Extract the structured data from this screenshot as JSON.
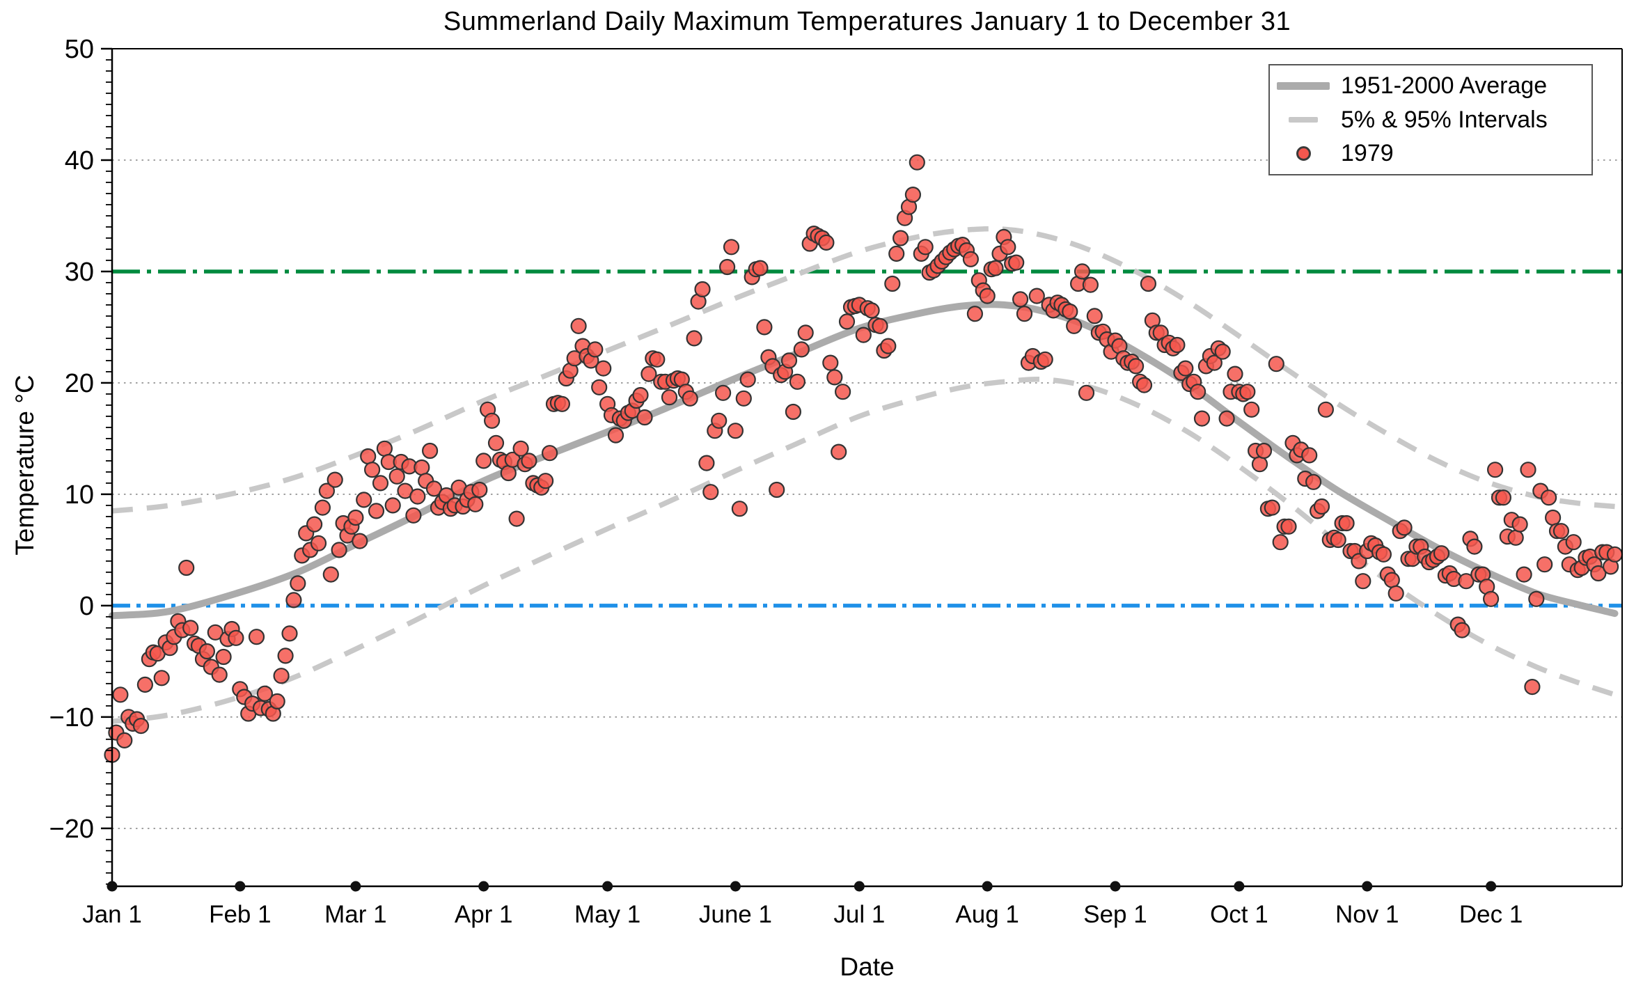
{
  "chart_data": {
    "type": "scatter",
    "title": "Summerland Daily Maximum Temperatures January 1 to December 31",
    "xlabel": "Date",
    "ylabel": "Temperature °C",
    "ylim": [
      -25.2,
      50
    ],
    "xlim_days": [
      1,
      366
    ],
    "grid": "horizontal dotted lines at -20, -10, 10, 20, 40",
    "grid_values": [
      40,
      20,
      10,
      -10,
      -20
    ],
    "legend_position": "top-right",
    "y_ticks": [
      {
        "value": 50,
        "label": "50"
      },
      {
        "value": 40,
        "label": "40"
      },
      {
        "value": 30,
        "label": "30"
      },
      {
        "value": 20,
        "label": "20"
      },
      {
        "value": 10,
        "label": "10"
      },
      {
        "value": 0,
        "label": "0"
      },
      {
        "value": -10,
        "label": "−10"
      },
      {
        "value": -20,
        "label": "−20"
      }
    ],
    "y_minor_tick_step": 1,
    "x_ticks": [
      {
        "day": 1,
        "label": "Jan 1"
      },
      {
        "day": 32,
        "label": "Feb 1"
      },
      {
        "day": 60,
        "label": "Mar 1"
      },
      {
        "day": 91,
        "label": "Apr 1"
      },
      {
        "day": 121,
        "label": "May 1"
      },
      {
        "day": 152,
        "label": "June 1"
      },
      {
        "day": 182,
        "label": "Jul 1"
      },
      {
        "day": 213,
        "label": "Aug 1"
      },
      {
        "day": 244,
        "label": "Sep 1"
      },
      {
        "day": 274,
        "label": "Oct 1"
      },
      {
        "day": 305,
        "label": "Nov 1"
      },
      {
        "day": 335,
        "label": "Dec 1"
      }
    ],
    "reference_lines": [
      {
        "name": "30C-threshold",
        "value": 30,
        "color": "#008a3e",
        "style": "dash-dot-long"
      },
      {
        "name": "0C-freezing",
        "value": 0,
        "color": "#1e90e8",
        "style": "dash-dot"
      }
    ],
    "legend": {
      "items": [
        {
          "label": "1951-2000 Average",
          "swatch": "thick-gray-line"
        },
        {
          "label": "5% & 95% Intervals",
          "swatch": "dashed-gray-line"
        },
        {
          "label": "1979",
          "swatch": "red-dot"
        }
      ]
    },
    "curves": {
      "sample_days": [
        1,
        15,
        32,
        46,
        60,
        74,
        91,
        105,
        121,
        135,
        152,
        166,
        182,
        196,
        207,
        217,
        227,
        238,
        250,
        262,
        274,
        286,
        298,
        310,
        322,
        334,
        346,
        356,
        365
      ],
      "average_1951_2000": [
        -0.9,
        -0.5,
        1.2,
        3.0,
        5.5,
        8.0,
        11.2,
        13.3,
        15.6,
        17.7,
        20.4,
        22.5,
        24.9,
        26.2,
        26.9,
        27.0,
        26.4,
        25.0,
        22.6,
        19.8,
        16.5,
        13.3,
        10.3,
        7.7,
        5.2,
        3.0,
        1.1,
        0.1,
        -0.7
      ],
      "interval_95pct": [
        8.5,
        9.0,
        10.2,
        11.6,
        13.5,
        15.6,
        18.4,
        20.5,
        22.9,
        25.0,
        27.6,
        29.6,
        31.8,
        33.1,
        33.7,
        33.8,
        33.2,
        31.9,
        29.8,
        27.2,
        24.2,
        21.1,
        18.1,
        15.4,
        13.0,
        11.1,
        9.8,
        9.2,
        8.9
      ],
      "interval_5pct": [
        -10.4,
        -9.8,
        -8.2,
        -6.3,
        -3.9,
        -1.4,
        1.8,
        4.2,
        6.9,
        9.2,
        12.1,
        14.4,
        17.0,
        18.6,
        19.6,
        20.1,
        20.3,
        19.6,
        17.9,
        15.5,
        12.5,
        9.2,
        5.6,
        2.2,
        -0.8,
        -3.4,
        -5.5,
        -6.9,
        -8.0
      ]
    },
    "scatter_1979": {
      "month_order": [
        "Jan",
        "Feb",
        "Mar",
        "Apr",
        "May",
        "Jun",
        "Jul",
        "Aug",
        "Sep",
        "Oct",
        "Nov",
        "Dec"
      ],
      "monthly_temps_c": {
        "Jan": [
          -13.4,
          -11.4,
          -8.0,
          -12.1,
          -10.0,
          -10.6,
          -10.2,
          -10.8,
          -7.1,
          -4.8,
          -4.2,
          -4.3,
          -6.5,
          -3.3,
          -3.8,
          -2.8,
          -1.4,
          -2.2,
          3.4,
          -2.0,
          -3.4,
          -3.6,
          -4.8,
          -4.1,
          -5.5,
          -2.4,
          -6.2,
          -4.6,
          -3.0,
          -2.1,
          -2.9
        ],
        "Feb": [
          -7.5,
          -8.2,
          -9.7,
          -8.8,
          -2.8,
          -9.2,
          -7.9,
          -9.3,
          -9.7,
          -8.6,
          -6.3,
          -4.5,
          -2.5,
          0.5,
          2.0,
          4.5,
          6.5,
          5.0,
          7.3,
          5.6,
          8.8,
          10.3,
          2.8,
          11.3,
          5.0,
          7.4,
          6.3,
          7.1
        ],
        "Mar": [
          7.9,
          5.8,
          9.5,
          13.4,
          12.2,
          8.5,
          11.0,
          14.1,
          12.9,
          9.0,
          11.6,
          12.9,
          10.3,
          12.5,
          8.1,
          9.8,
          12.4,
          11.2,
          13.9,
          10.5,
          8.8,
          9.3,
          9.9,
          8.7,
          9.0,
          10.6,
          8.9,
          9.5,
          10.2,
          9.1,
          10.4
        ],
        "Apr": [
          13.0,
          17.6,
          16.6,
          14.6,
          13.1,
          12.9,
          11.9,
          13.1,
          7.8,
          14.1,
          12.7,
          13.0,
          11.0,
          10.8,
          10.6,
          11.2,
          13.7,
          18.1,
          18.2,
          18.1,
          20.4,
          21.1,
          22.2,
          25.1,
          23.3,
          22.4,
          22.0,
          23.0,
          19.6,
          21.3
        ],
        "May": [
          18.1,
          17.1,
          15.3,
          16.8,
          16.6,
          17.3,
          17.5,
          18.4,
          18.9,
          16.9,
          20.8,
          22.2,
          22.1,
          20.1,
          20.1,
          18.7,
          20.2,
          20.4,
          20.3,
          19.2,
          18.6,
          24.0,
          27.3,
          28.4,
          12.8,
          10.2,
          15.7,
          16.6,
          19.1,
          30.4,
          32.2
        ],
        "Jun": [
          15.7,
          8.7,
          18.6,
          20.3,
          29.5,
          30.2,
          30.3,
          25.0,
          22.3,
          21.5,
          10.4,
          20.7,
          21.0,
          22.0,
          17.4,
          20.1,
          23.0,
          24.5,
          32.5,
          33.4,
          33.2,
          33.0,
          32.6,
          21.8,
          20.5,
          13.8,
          19.2,
          25.5,
          26.8,
          26.9
        ],
        "Jul": [
          27.0,
          24.3,
          26.7,
          26.5,
          25.2,
          25.1,
          22.9,
          23.3,
          28.9,
          31.6,
          33.0,
          34.8,
          35.8,
          36.9,
          39.8,
          31.6,
          32.2,
          29.9,
          30.1,
          30.5,
          30.9,
          31.3,
          31.7,
          32.0,
          32.3,
          32.4,
          31.9,
          31.1,
          26.2,
          29.2,
          28.3
        ],
        "Aug": [
          27.8,
          30.2,
          30.3,
          31.6,
          33.1,
          32.2,
          30.7,
          30.8,
          27.5,
          26.2,
          21.8,
          22.4,
          27.8,
          21.9,
          22.1,
          27.0,
          26.5,
          27.2,
          27.0,
          26.6,
          26.4,
          25.1,
          28.9,
          30.0,
          19.1,
          28.8,
          26.0,
          24.5,
          24.6,
          23.9,
          22.8
        ],
        "Sep": [
          23.8,
          23.3,
          22.2,
          21.8,
          21.9,
          21.5,
          20.1,
          19.8,
          28.9,
          25.6,
          24.5,
          24.5,
          23.4,
          23.6,
          23.1,
          23.4,
          20.9,
          21.3,
          19.9,
          20.1,
          19.2,
          16.8,
          21.5,
          22.4,
          21.8,
          23.1,
          22.8,
          16.8,
          19.2,
          20.8
        ],
        "Oct": [
          19.2,
          19.0,
          19.2,
          17.6,
          13.9,
          12.7,
          13.9,
          8.7,
          8.8,
          21.7,
          5.7,
          7.1,
          7.1,
          14.6,
          13.5,
          14.0,
          11.4,
          13.5,
          11.1,
          8.5,
          8.9,
          17.6,
          5.9,
          6.1,
          5.9,
          7.4,
          7.4,
          4.9,
          4.9,
          4.0,
          2.2
        ],
        "Nov": [
          4.9,
          5.6,
          5.4,
          4.8,
          4.6,
          2.8,
          2.3,
          1.1,
          6.7,
          7.0,
          4.2,
          4.2,
          5.3,
          5.3,
          4.4,
          3.9,
          4.1,
          4.4,
          4.7,
          2.7,
          2.9,
          2.4,
          -1.7,
          -2.2,
          2.2,
          6.0,
          5.3,
          2.8,
          2.8,
          1.7
        ],
        "Dec": [
          0.6,
          12.2,
          9.7,
          9.7,
          6.2,
          7.7,
          6.1,
          7.3,
          2.8,
          12.2,
          -7.3,
          0.6,
          10.3,
          3.7,
          9.7,
          7.9,
          6.7,
          6.7,
          5.3,
          3.7,
          5.7,
          3.2,
          3.4,
          4.3,
          4.4,
          3.7,
          2.9,
          4.8,
          4.8,
          3.5,
          4.6
        ]
      }
    },
    "colors": {
      "scatter_fill": "#f4574e",
      "scatter_edge": "#333333",
      "average_line": "#ababab",
      "interval_line": "#c8c8c8",
      "threshold_30c": "#008a3e",
      "freezing_0c": "#1e90e8",
      "gridline": "#8c8c8c",
      "axis": "#000000"
    }
  }
}
